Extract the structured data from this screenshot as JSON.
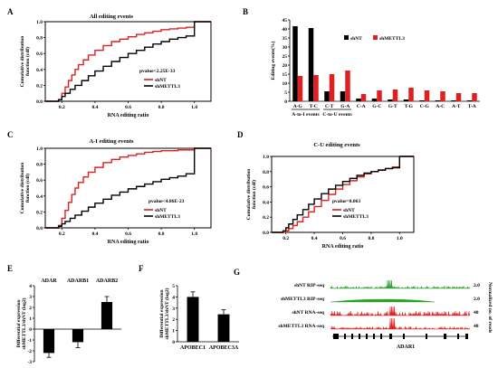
{
  "chart_data": [
    {
      "id": "A",
      "type": "line",
      "panel_label": "A",
      "title": "All editing events",
      "xlabel": "RNA editing ratio",
      "ylabel": "Cumulative distribution function (cdf)",
      "xlim": [
        0.1,
        1.1
      ],
      "ylim": [
        0,
        1.0
      ],
      "xticks": [
        "0.2",
        "0.4",
        "0.6",
        "0.8",
        "1.0"
      ],
      "yticks": [
        "0.0",
        "0.2",
        "0.4",
        "0.6",
        "0.8",
        "1.0"
      ],
      "pvalue": "pvalue<2.25E-33",
      "series": [
        {
          "name": "shNT",
          "color": "#e02020",
          "x": [
            0.1,
            0.18,
            0.2,
            0.22,
            0.24,
            0.26,
            0.28,
            0.3,
            0.33,
            0.36,
            0.4,
            0.45,
            0.5,
            0.55,
            0.6,
            0.65,
            0.7,
            0.75,
            0.8,
            0.85,
            0.9,
            0.95,
            1.0,
            1.0,
            1.1
          ],
          "y": [
            0.0,
            0.02,
            0.1,
            0.18,
            0.26,
            0.33,
            0.4,
            0.46,
            0.52,
            0.58,
            0.64,
            0.7,
            0.75,
            0.78,
            0.81,
            0.84,
            0.86,
            0.88,
            0.9,
            0.91,
            0.92,
            0.93,
            0.93,
            1.0,
            1.0
          ]
        },
        {
          "name": "shMETTL3",
          "color": "#000000",
          "x": [
            0.1,
            0.18,
            0.2,
            0.22,
            0.25,
            0.28,
            0.32,
            0.36,
            0.4,
            0.45,
            0.5,
            0.55,
            0.6,
            0.65,
            0.7,
            0.75,
            0.8,
            0.85,
            0.9,
            0.95,
            1.0,
            1.0,
            1.1
          ],
          "y": [
            0.0,
            0.02,
            0.06,
            0.1,
            0.15,
            0.2,
            0.26,
            0.32,
            0.38,
            0.44,
            0.5,
            0.55,
            0.6,
            0.64,
            0.68,
            0.72,
            0.75,
            0.78,
            0.8,
            0.82,
            0.85,
            1.0,
            1.0
          ]
        }
      ]
    },
    {
      "id": "B",
      "type": "bar",
      "panel_label": "B",
      "ylabel": "Editing events(%)",
      "ylim": [
        0,
        45
      ],
      "yticks": [
        "0",
        "5",
        "10",
        "15",
        "20",
        "25",
        "30",
        "35",
        "40",
        "45"
      ],
      "categories": [
        "A-G",
        "T-C",
        "C-T",
        "G-A",
        "C-A",
        "G-C",
        "G-T",
        "T-G",
        "C-G",
        "A-C",
        "A-T",
        "T-A"
      ],
      "group_labels": [
        "A-to-I events",
        "C-to-U events"
      ],
      "series": [
        {
          "name": "shNT",
          "color": "#000000",
          "values": [
            41.5,
            40.5,
            5.5,
            5.5,
            1.5,
            1.5,
            1.0,
            1.0,
            0.5,
            0.5,
            0.5,
            0.5
          ]
        },
        {
          "name": "shMETTL3",
          "color": "#e02020",
          "values": [
            14.0,
            14.5,
            15.0,
            17.0,
            4.0,
            6.0,
            6.5,
            7.5,
            6.0,
            5.5,
            4.5,
            4.5
          ]
        }
      ]
    },
    {
      "id": "C",
      "type": "line",
      "panel_label": "C",
      "title": "A-I editing events",
      "xlabel": "RNA editing ratio",
      "ylabel": "Cumulative distribution function (cdf)",
      "xlim": [
        0.1,
        1.1
      ],
      "ylim": [
        0,
        1.0
      ],
      "xticks": [
        "0.2",
        "0.4",
        "0.6",
        "0.8",
        "1.0"
      ],
      "yticks": [
        "0.0",
        "0.2",
        "0.4",
        "0.6",
        "0.8",
        "1.0"
      ],
      "pvalue": "pvalue<4.86E-23",
      "series": [
        {
          "name": "shNT",
          "color": "#e02020",
          "x": [
            0.1,
            0.18,
            0.2,
            0.22,
            0.24,
            0.26,
            0.28,
            0.3,
            0.33,
            0.36,
            0.4,
            0.45,
            0.5,
            0.55,
            0.6,
            0.65,
            0.7,
            0.75,
            0.8,
            0.85,
            0.9,
            0.95,
            1.0,
            1.0,
            1.1
          ],
          "y": [
            0.0,
            0.03,
            0.12,
            0.22,
            0.32,
            0.42,
            0.5,
            0.57,
            0.64,
            0.7,
            0.76,
            0.82,
            0.86,
            0.89,
            0.91,
            0.93,
            0.95,
            0.96,
            0.97,
            0.97,
            0.98,
            0.98,
            0.98,
            1.0,
            1.0
          ]
        },
        {
          "name": "shMETTL3",
          "color": "#000000",
          "x": [
            0.1,
            0.18,
            0.2,
            0.22,
            0.25,
            0.28,
            0.32,
            0.36,
            0.4,
            0.45,
            0.5,
            0.55,
            0.6,
            0.65,
            0.7,
            0.75,
            0.8,
            0.85,
            0.9,
            0.95,
            1.0,
            1.0,
            1.1
          ],
          "y": [
            0.0,
            0.02,
            0.05,
            0.08,
            0.12,
            0.16,
            0.21,
            0.26,
            0.31,
            0.36,
            0.41,
            0.45,
            0.49,
            0.52,
            0.55,
            0.58,
            0.61,
            0.63,
            0.65,
            0.68,
            0.7,
            1.0,
            1.0
          ]
        }
      ]
    },
    {
      "id": "D",
      "type": "line",
      "panel_label": "D",
      "title": "C-U editing events",
      "xlabel": "RNA editing ratio",
      "ylabel": "Cumulative distribution function (cdf)",
      "xlim": [
        0.1,
        1.1
      ],
      "ylim": [
        0,
        1.0
      ],
      "xticks": [
        "0.2",
        "0.4",
        "0.6",
        "0.8",
        "1.0"
      ],
      "yticks": [
        "0.0",
        "0.2",
        "0.4",
        "0.6",
        "0.8",
        "1.0"
      ],
      "pvalue": "pvalue=0.063",
      "series": [
        {
          "name": "shNT",
          "color": "#e02020",
          "x": [
            0.1,
            0.2,
            0.22,
            0.25,
            0.28,
            0.32,
            0.36,
            0.4,
            0.45,
            0.5,
            0.55,
            0.6,
            0.65,
            0.7,
            0.75,
            0.8,
            0.85,
            0.9,
            0.95,
            1.0,
            1.0,
            1.1
          ],
          "y": [
            0.0,
            0.02,
            0.05,
            0.09,
            0.14,
            0.2,
            0.27,
            0.34,
            0.42,
            0.5,
            0.57,
            0.63,
            0.68,
            0.73,
            0.77,
            0.8,
            0.82,
            0.84,
            0.86,
            0.87,
            1.0,
            1.0
          ]
        },
        {
          "name": "shMETTL3",
          "color": "#000000",
          "x": [
            0.1,
            0.18,
            0.2,
            0.22,
            0.25,
            0.28,
            0.32,
            0.36,
            0.4,
            0.45,
            0.5,
            0.55,
            0.6,
            0.65,
            0.7,
            0.75,
            0.8,
            0.85,
            0.9,
            0.95,
            1.0,
            1.0,
            1.1
          ],
          "y": [
            0.0,
            0.02,
            0.06,
            0.11,
            0.17,
            0.23,
            0.3,
            0.37,
            0.44,
            0.51,
            0.57,
            0.62,
            0.67,
            0.71,
            0.75,
            0.78,
            0.8,
            0.82,
            0.84,
            0.85,
            0.86,
            1.0,
            1.0
          ]
        }
      ]
    },
    {
      "id": "E",
      "type": "bar",
      "panel_label": "E",
      "ylabel": "Differential expression shMETTL3/shNT (log2)",
      "ylim": [
        -3,
        4
      ],
      "yticks": [
        "-3",
        "-2",
        "-1",
        "0",
        "1",
        "2",
        "3",
        "4"
      ],
      "categories": [
        "ADAR",
        "ADARB1",
        "ADARB2"
      ],
      "values": [
        -2.2,
        -1.2,
        2.5
      ],
      "errors": [
        0.4,
        0.5,
        0.5
      ],
      "color": "#000000"
    },
    {
      "id": "F",
      "type": "bar",
      "panel_label": "F",
      "ylabel": "Differential expression shMETTL3/shNT (log2)",
      "ylim": [
        0,
        5
      ],
      "yticks": [
        "0",
        "1",
        "2",
        "3",
        "4",
        "5"
      ],
      "categories": [
        "APOBEC1",
        "APOBEC3A"
      ],
      "values": [
        4.0,
        2.45
      ],
      "errors": [
        0.45,
        0.4
      ],
      "color": "#000000"
    }
  ],
  "panel_g": {
    "panel_label": "G",
    "tracks": [
      {
        "label": "shNT RIP-seq",
        "color": "#2e9e2e",
        "scale": "2.0"
      },
      {
        "label": "shMETTL3 RIP-seq",
        "color": "#2e9e2e",
        "scale": "2.0"
      },
      {
        "label": "shNT RNA-seq",
        "color": "#e02020",
        "scale": "40"
      },
      {
        "label": "shMETTL3 RNA-seq",
        "color": "#e02020",
        "scale": "40"
      }
    ],
    "side_label": "Normalized no. of reads",
    "gene": "ADAR1"
  }
}
